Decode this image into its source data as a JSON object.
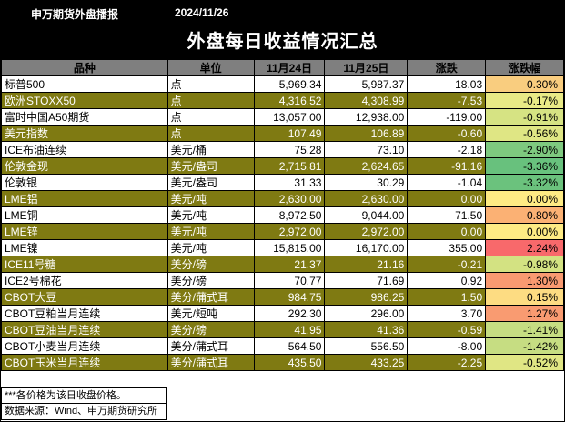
{
  "header": {
    "source": "申万期货外盘播报",
    "date": "2024/11/26",
    "title": "外盘每日收益情况汇总"
  },
  "columns": [
    "品种",
    "单位",
    "11月24日",
    "11月25日",
    "涨跌",
    "涨跌幅"
  ],
  "rows": [
    {
      "name": "标普500",
      "unit": "点",
      "d1": "5,969.34",
      "d2": "5,987.37",
      "chg": "18.03",
      "pct": "0.30%",
      "pct_color": "#f9cd7f",
      "style": "white"
    },
    {
      "name": "欧洲STOXX50",
      "unit": "点",
      "d1": "4,316.52",
      "d2": "4,308.99",
      "chg": "-7.53",
      "pct": "-0.17%",
      "pct_color": "#e9ea86",
      "style": "olive"
    },
    {
      "name": "富时中国A50期货",
      "unit": "点",
      "d1": "13,057.00",
      "d2": "12,938.00",
      "chg": "-119.00",
      "pct": "-0.91%",
      "pct_color": "#d6e383",
      "style": "white"
    },
    {
      "name": "美元指数",
      "unit": "点",
      "d1": "107.49",
      "d2": "106.89",
      "chg": "-0.60",
      "pct": "-0.56%",
      "pct_color": "#dfe684",
      "style": "olive"
    },
    {
      "name": "ICE布油连续",
      "unit": "美元/桶",
      "d1": "75.28",
      "d2": "73.10",
      "chg": "-2.18",
      "pct": "-2.90%",
      "pct_color": "#7ec97f",
      "style": "white"
    },
    {
      "name": "伦敦金现",
      "unit": "美元/盎司",
      "d1": "2,715.81",
      "d2": "2,624.65",
      "chg": "-91.16",
      "pct": "-3.36%",
      "pct_color": "#68c17d",
      "style": "olive"
    },
    {
      "name": "伦敦银",
      "unit": "美元/盎司",
      "d1": "31.33",
      "d2": "30.29",
      "chg": "-1.04",
      "pct": "-3.32%",
      "pct_color": "#6bc27d",
      "style": "white"
    },
    {
      "name": "LME铝",
      "unit": "美元/吨",
      "d1": "2,630.00",
      "d2": "2,630.00",
      "chg": "0.00",
      "pct": "0.00%",
      "pct_color": "#feeb84",
      "style": "olive"
    },
    {
      "name": "LME铜",
      "unit": "美元/吨",
      "d1": "8,972.50",
      "d2": "9,044.00",
      "chg": "71.50",
      "pct": "0.80%",
      "pct_color": "#fbb174",
      "style": "white"
    },
    {
      "name": "LME锌",
      "unit": "美元/吨",
      "d1": "2,972.00",
      "d2": "2,972.00",
      "chg": "0.00",
      "pct": "0.00%",
      "pct_color": "#feeb84",
      "style": "olive"
    },
    {
      "name": "LME镍",
      "unit": "美元/吨",
      "d1": "15,815.00",
      "d2": "16,170.00",
      "chg": "355.00",
      "pct": "2.24%",
      "pct_color": "#f8696b",
      "style": "white"
    },
    {
      "name": "ICE11号糖",
      "unit": "美分/磅",
      "d1": "21.37",
      "d2": "21.16",
      "chg": "-0.21",
      "pct": "-0.98%",
      "pct_color": "#d3e282",
      "style": "olive"
    },
    {
      "name": "ICE2号棉花",
      "unit": "美分/磅",
      "d1": "70.77",
      "d2": "71.69",
      "chg": "0.92",
      "pct": "1.30%",
      "pct_color": "#f99a71",
      "style": "white"
    },
    {
      "name": "CBOT大豆",
      "unit": "美分/蒲式耳",
      "d1": "984.75",
      "d2": "986.25",
      "chg": "1.50",
      "pct": "0.15%",
      "pct_color": "#fddc82",
      "style": "olive"
    },
    {
      "name": "CBOT豆粕当月连续",
      "unit": "美元/短吨",
      "d1": "292.30",
      "d2": "296.00",
      "chg": "3.70",
      "pct": "1.27%",
      "pct_color": "#f99b71",
      "style": "white"
    },
    {
      "name": "CBOT豆油当月连续",
      "unit": "美分/磅",
      "d1": "41.95",
      "d2": "41.36",
      "chg": "-0.59",
      "pct": "-1.41%",
      "pct_color": "#c6dd82",
      "style": "olive"
    },
    {
      "name": "CBOT小麦当月连续",
      "unit": "美分/蒲式耳",
      "d1": "564.50",
      "d2": "556.50",
      "chg": "-8.00",
      "pct": "-1.42%",
      "pct_color": "#c6dd82",
      "style": "white"
    },
    {
      "name": "CBOT玉米当月连续",
      "unit": "美分/蒲式耳",
      "d1": "435.50",
      "d2": "433.25",
      "chg": "-2.25",
      "pct": "-0.52%",
      "pct_color": "#e0e684",
      "style": "olive"
    }
  ],
  "footer": {
    "note": "***各价格为该日收盘价格。",
    "source": "数据来源：Wind、申万期货研究所"
  }
}
